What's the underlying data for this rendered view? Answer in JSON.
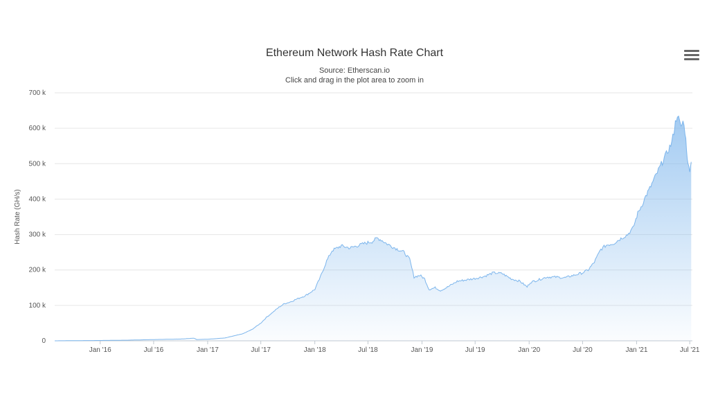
{
  "chart_data": {
    "type": "area",
    "title": "Ethereum Network Hash Rate Chart",
    "subtitle": [
      "Source: Etherscan.io",
      "Click and drag in the plot area to zoom in"
    ],
    "xlabel": "",
    "ylabel": "Hash Rate (GH/s)",
    "ylim": [
      0,
      700000
    ],
    "xlim": [
      "2015-07-30",
      "2021-07-10"
    ],
    "y_tick_labels": [
      "0",
      "100 k",
      "200 k",
      "300 k",
      "400 k",
      "500 k",
      "600 k",
      "700 k"
    ],
    "y_tick_values": [
      0,
      100000,
      200000,
      300000,
      400000,
      500000,
      600000,
      700000
    ],
    "x_tick_labels": [
      "Jan '16",
      "Jul '16",
      "Jan '17",
      "Jul '17",
      "Jan '18",
      "Jul '18",
      "Jan '19",
      "Jul '19",
      "Jan '20",
      "Jul '20",
      "Jan '21",
      "Jul '21"
    ],
    "x_tick_dates": [
      "2016-01-01",
      "2016-07-01",
      "2017-01-01",
      "2017-07-01",
      "2018-01-01",
      "2018-07-01",
      "2019-01-01",
      "2019-07-01",
      "2020-01-01",
      "2020-07-01",
      "2021-01-01",
      "2021-07-01"
    ],
    "grid": true,
    "series": [
      {
        "color": "#7cb5ec",
        "x": [
          "2015-07-30",
          "2015-10-01",
          "2016-01-01",
          "2016-04-01",
          "2016-07-01",
          "2016-10-01",
          "2016-11-15",
          "2016-11-25",
          "2017-01-01",
          "2017-03-01",
          "2017-05-01",
          "2017-06-01",
          "2017-07-01",
          "2017-07-20",
          "2017-08-10",
          "2017-09-01",
          "2017-09-20",
          "2017-10-10",
          "2017-11-01",
          "2017-12-01",
          "2018-01-01",
          "2018-01-20",
          "2018-02-10",
          "2018-03-01",
          "2018-04-01",
          "2018-05-01",
          "2018-06-01",
          "2018-06-20",
          "2018-07-15",
          "2018-08-01",
          "2018-08-15",
          "2018-09-01",
          "2018-10-01",
          "2018-11-01",
          "2018-11-20",
          "2018-12-05",
          "2018-12-25",
          "2019-01-10",
          "2019-01-25",
          "2019-02-15",
          "2019-03-05",
          "2019-04-01",
          "2019-05-01",
          "2019-06-01",
          "2019-07-01",
          "2019-08-01",
          "2019-09-01",
          "2019-10-01",
          "2019-11-01",
          "2019-12-01",
          "2019-12-25",
          "2020-01-05",
          "2020-02-01",
          "2020-03-01",
          "2020-04-01",
          "2020-05-01",
          "2020-06-01",
          "2020-07-01",
          "2020-07-20",
          "2020-08-10",
          "2020-09-01",
          "2020-09-20",
          "2020-10-15",
          "2020-11-01",
          "2020-12-01",
          "2020-12-20",
          "2021-01-05",
          "2021-01-20",
          "2021-02-01",
          "2021-02-15",
          "2021-03-01",
          "2021-03-20",
          "2021-04-05",
          "2021-04-20",
          "2021-05-01",
          "2021-05-08",
          "2021-05-13",
          "2021-05-20",
          "2021-06-01",
          "2021-06-08",
          "2021-06-15",
          "2021-06-20",
          "2021-06-25",
          "2021-07-01",
          "2021-07-06"
        ],
        "y": [
          0,
          500,
          1000,
          1800,
          3500,
          5000,
          7500,
          3500,
          4500,
          8000,
          20000,
          32000,
          50000,
          66000,
          80000,
          95000,
          105000,
          110000,
          118000,
          128000,
          145000,
          180000,
          225000,
          255000,
          268000,
          262000,
          270000,
          275000,
          280000,
          290000,
          285000,
          275000,
          262000,
          250000,
          230000,
          180000,
          185000,
          175000,
          145000,
          150000,
          142000,
          153000,
          168000,
          172000,
          176000,
          182000,
          192000,
          190000,
          175000,
          168000,
          152000,
          165000,
          172000,
          180000,
          180000,
          178000,
          185000,
          192000,
          200000,
          222000,
          258000,
          270000,
          275000,
          285000,
          300000,
          318000,
          360000,
          385000,
          408000,
          430000,
          455000,
          488000,
          515000,
          540000,
          560000,
          590000,
          615000,
          640000,
          600000,
          620000,
          590000,
          545000,
          495000,
          485000,
          505000
        ]
      }
    ]
  },
  "ui": {
    "menu_icon": "hamburger-menu-icon"
  }
}
